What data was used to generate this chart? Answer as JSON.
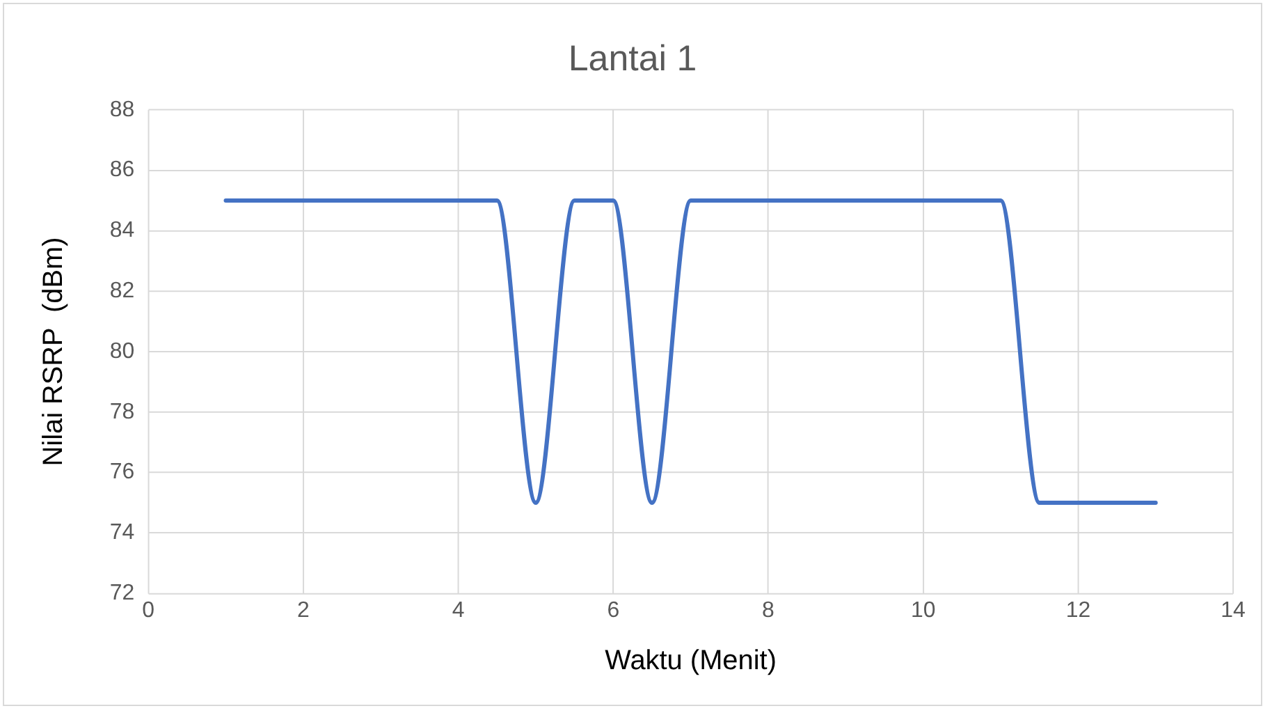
{
  "chart_data": {
    "type": "line",
    "title": "Lantai 1",
    "xlabel": "Waktu (Menit)",
    "ylabel": "Nilai RSRP  (dBm)",
    "x": [
      1,
      2,
      3,
      4,
      4.5,
      5,
      5.5,
      6,
      6.5,
      7,
      7.5,
      8,
      9,
      10,
      10.5,
      11,
      11.5,
      12,
      13
    ],
    "series": [
      {
        "color": "#4472c4",
        "values": [
          85,
          85,
          85,
          85,
          85,
          75,
          85,
          85,
          75,
          85,
          85,
          85,
          85,
          85,
          85,
          85,
          75,
          75,
          75
        ]
      }
    ],
    "xlim": [
      0,
      14
    ],
    "xticks": [
      0,
      2,
      4,
      6,
      8,
      10,
      12,
      14
    ],
    "ylim": [
      72,
      88
    ],
    "yticks": [
      72,
      74,
      76,
      78,
      80,
      82,
      84,
      86,
      88
    ],
    "grid": true,
    "legend": false,
    "marker": "none",
    "line_style": "solid"
  }
}
